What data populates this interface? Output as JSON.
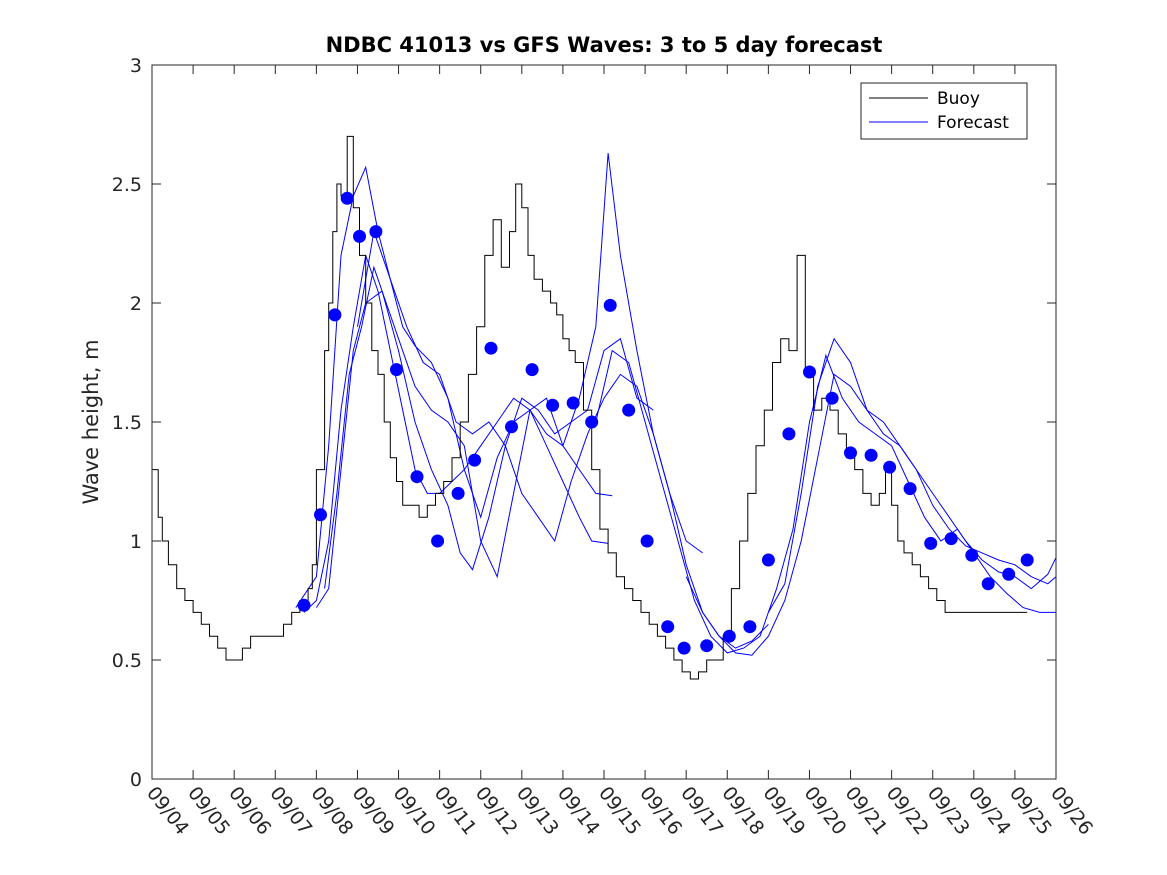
{
  "chart_data": {
    "type": "line",
    "title": "NDBC 41013 vs GFS Waves: 3 to 5 day forecast",
    "xlabel": "",
    "ylabel": "Wave height, m",
    "ylim": [
      0,
      3
    ],
    "xlim": [
      0,
      22
    ],
    "yticks": [
      0,
      0.5,
      1,
      1.5,
      2,
      2.5,
      3
    ],
    "yticklabels": [
      "0",
      "0.5",
      "1",
      "1.5",
      "2",
      "2.5",
      "3"
    ],
    "xticks": [
      0,
      1,
      2,
      3,
      4,
      5,
      6,
      7,
      8,
      9,
      10,
      11,
      12,
      13,
      14,
      15,
      16,
      17,
      18,
      19,
      20,
      21,
      22
    ],
    "xticklabels": [
      "09/04",
      "09/05",
      "09/06",
      "09/07",
      "09/08",
      "09/09",
      "09/10",
      "09/11",
      "09/12",
      "09/13",
      "09/14",
      "09/15",
      "09/16",
      "09/17",
      "09/18",
      "09/19",
      "09/20",
      "09/21",
      "09/22",
      "09/23",
      "09/24",
      "09/25",
      "09/26"
    ],
    "legend": {
      "position": "top-right",
      "entries": [
        "Buoy",
        "Forecast"
      ]
    },
    "colors": {
      "buoy": "#000000",
      "forecast": "#0000ff",
      "axes": "#262626"
    },
    "buoy": {
      "name": "Buoy",
      "x": [
        0,
        0.15,
        0.25,
        0.4,
        0.6,
        0.8,
        1.0,
        1.2,
        1.4,
        1.6,
        1.8,
        2.0,
        2.2,
        2.4,
        2.6,
        2.8,
        3.0,
        3.2,
        3.4,
        3.6,
        3.8,
        3.9,
        4.0,
        4.2,
        4.3,
        4.4,
        4.5,
        4.6,
        4.75,
        4.9,
        5.05,
        5.2,
        5.35,
        5.5,
        5.65,
        5.8,
        5.95,
        6.1,
        6.3,
        6.5,
        6.7,
        6.9,
        7.1,
        7.3,
        7.5,
        7.7,
        7.9,
        8.1,
        8.3,
        8.5,
        8.7,
        8.85,
        9.0,
        9.15,
        9.3,
        9.5,
        9.7,
        9.85,
        10.0,
        10.15,
        10.3,
        10.5,
        10.7,
        10.9,
        11.1,
        11.3,
        11.5,
        11.7,
        11.9,
        12.1,
        12.3,
        12.5,
        12.7,
        12.9,
        13.1,
        13.3,
        13.5,
        13.7,
        13.9,
        14.1,
        14.3,
        14.5,
        14.7,
        14.9,
        15.1,
        15.3,
        15.5,
        15.7,
        15.9,
        16.1,
        16.3,
        16.5,
        16.7,
        16.9,
        17.1,
        17.3,
        17.5,
        17.7,
        17.85,
        18.0,
        18.15,
        18.3,
        18.5,
        18.7,
        18.9,
        19.1,
        19.3,
        19.5,
        19.7,
        19.9,
        20.1,
        20.3,
        20.5,
        20.7,
        20.9,
        21.1,
        21.3
      ],
      "values": [
        1.3,
        1.1,
        1.0,
        0.9,
        0.8,
        0.75,
        0.7,
        0.65,
        0.6,
        0.55,
        0.5,
        0.5,
        0.55,
        0.6,
        0.6,
        0.6,
        0.6,
        0.65,
        0.7,
        0.75,
        0.8,
        0.9,
        1.3,
        1.8,
        2.0,
        2.3,
        2.5,
        2.45,
        2.7,
        2.4,
        2.2,
        2.0,
        1.8,
        1.7,
        1.5,
        1.35,
        1.25,
        1.15,
        1.15,
        1.1,
        1.15,
        1.2,
        1.25,
        1.35,
        1.5,
        1.7,
        1.9,
        2.2,
        2.35,
        2.15,
        2.3,
        2.5,
        2.4,
        2.2,
        2.1,
        2.05,
        2.0,
        1.95,
        1.85,
        1.8,
        1.75,
        1.55,
        1.3,
        1.05,
        0.95,
        0.85,
        0.8,
        0.75,
        0.7,
        0.65,
        0.6,
        0.55,
        0.5,
        0.45,
        0.42,
        0.45,
        0.5,
        0.5,
        0.6,
        0.8,
        1.0,
        1.2,
        1.4,
        1.55,
        1.75,
        1.85,
        1.8,
        2.2,
        1.7,
        1.55,
        1.6,
        1.55,
        1.45,
        1.35,
        1.3,
        1.2,
        1.15,
        1.2,
        1.3,
        1.15,
        1.0,
        0.95,
        0.9,
        0.85,
        0.8,
        0.75,
        0.7,
        0.7,
        0.7,
        0.7,
        0.7,
        0.7,
        0.7,
        0.7,
        0.7,
        0.7,
        0.7
      ]
    },
    "forecast_points": {
      "name": "Forecast",
      "x": [
        3.7,
        4.1,
        4.45,
        4.75,
        5.05,
        5.45,
        5.95,
        6.45,
        6.95,
        7.45,
        7.85,
        8.25,
        8.75,
        9.25,
        9.75,
        10.25,
        10.7,
        11.15,
        11.6,
        12.05,
        12.55,
        12.95,
        13.5,
        14.05,
        14.55,
        15.0,
        15.5,
        16.0,
        16.55,
        17.0,
        17.5,
        17.95,
        18.45,
        18.95,
        19.45,
        19.95,
        20.35,
        20.85,
        21.3
      ],
      "values": [
        0.73,
        1.11,
        1.95,
        2.44,
        2.28,
        2.3,
        1.72,
        1.27,
        1.0,
        1.2,
        1.34,
        1.81,
        1.48,
        1.72,
        1.57,
        1.58,
        1.5,
        1.99,
        1.55,
        1.0,
        0.64,
        0.55,
        0.56,
        0.6,
        0.64,
        0.92,
        1.45,
        1.71,
        1.6,
        1.37,
        1.36,
        1.31,
        1.22,
        0.99,
        1.01,
        0.94,
        0.82,
        0.86,
        0.92
      ]
    },
    "forecast_series": [
      {
        "x": [
          3.5,
          4.0,
          4.3,
          4.6,
          4.9,
          5.2,
          5.5,
          5.8,
          6.1,
          6.4,
          6.8,
          7.2,
          7.6,
          8.0,
          8.4,
          8.8,
          9.2,
          9.6,
          10.0,
          10.4,
          10.8,
          11.2
        ],
        "values": [
          0.72,
          0.85,
          1.4,
          2.2,
          2.45,
          2.57,
          2.3,
          2.1,
          1.9,
          1.82,
          1.75,
          1.6,
          1.3,
          1.1,
          1.35,
          1.5,
          1.55,
          1.6,
          1.4,
          1.3,
          1.2,
          1.19
        ]
      },
      {
        "x": [
          3.7,
          4.0,
          4.3,
          4.6,
          4.9,
          5.2,
          5.5,
          5.8,
          6.1,
          6.4,
          6.7,
          7.0,
          7.3,
          7.6,
          8.0,
          8.4,
          8.8,
          9.2,
          9.6,
          10.0,
          10.4,
          10.7,
          11.1
        ],
        "values": [
          0.7,
          0.75,
          1.0,
          1.55,
          1.9,
          2.2,
          2.05,
          1.8,
          1.55,
          1.3,
          1.2,
          1.2,
          1.25,
          1.3,
          1.4,
          1.5,
          1.6,
          1.55,
          1.4,
          1.25,
          1.1,
          1.0,
          0.99
        ]
      },
      {
        "x": [
          4.0,
          4.3,
          4.6,
          4.9,
          5.2,
          5.6,
          6.0,
          6.4,
          6.8,
          7.2,
          7.5,
          7.8,
          8.2,
          8.6,
          9.0,
          9.4,
          9.8,
          10.2,
          10.6,
          11.0,
          11.4,
          11.8,
          12.2
        ],
        "values": [
          0.72,
          0.8,
          1.3,
          1.8,
          2.0,
          2.05,
          1.8,
          1.5,
          1.3,
          1.15,
          0.95,
          0.88,
          1.1,
          1.4,
          1.6,
          1.55,
          1.45,
          1.5,
          1.55,
          1.8,
          1.85,
          1.6,
          1.55
        ]
      },
      {
        "x": [
          4.2,
          4.5,
          4.8,
          5.1,
          5.4,
          5.7,
          6.0,
          6.4,
          6.8,
          7.2,
          7.6,
          8.0,
          8.4,
          8.8,
          9.2,
          9.6,
          10.0,
          10.4,
          10.8,
          11.1,
          11.4,
          11.8,
          12.2,
          12.6,
          13.0,
          13.4
        ],
        "values": [
          0.8,
          1.2,
          1.7,
          1.9,
          2.15,
          2.0,
          1.85,
          1.65,
          1.55,
          1.5,
          1.4,
          1.0,
          0.85,
          1.2,
          1.55,
          1.45,
          1.4,
          1.6,
          1.9,
          2.63,
          2.2,
          1.8,
          1.45,
          1.2,
          1.0,
          0.95
        ]
      },
      {
        "x": [
          5.0,
          5.4,
          5.8,
          6.2,
          6.6,
          7.0,
          7.4,
          7.8,
          8.2,
          8.6,
          9.0,
          9.4,
          9.8,
          10.2,
          10.6,
          11.0,
          11.4,
          11.8,
          12.2,
          12.6,
          13.0,
          13.4,
          13.8,
          14.2,
          14.6,
          15.0
        ],
        "values": [
          1.9,
          2.3,
          2.1,
          1.9,
          1.75,
          1.7,
          1.5,
          1.45,
          1.5,
          1.4,
          1.2,
          1.1,
          1.0,
          1.25,
          1.45,
          1.6,
          1.7,
          1.65,
          1.45,
          1.2,
          0.9,
          0.7,
          0.6,
          0.55,
          0.58,
          0.65
        ]
      },
      {
        "x": [
          10.8,
          11.2,
          11.6,
          12.0,
          12.4,
          12.8,
          13.2,
          13.6,
          14.0,
          14.4,
          14.8,
          15.2,
          15.6,
          16.0,
          16.4,
          16.8,
          17.2,
          17.6,
          18.0,
          18.4,
          18.8,
          19.2,
          19.6,
          20.0,
          20.4,
          20.8,
          21.2,
          21.6,
          22.0
        ],
        "values": [
          1.5,
          1.8,
          1.75,
          1.5,
          1.25,
          1.0,
          0.75,
          0.6,
          0.53,
          0.55,
          0.6,
          0.8,
          1.05,
          1.5,
          1.78,
          1.6,
          1.5,
          1.45,
          1.4,
          1.25,
          1.1,
          1.0,
          1.05,
          0.95,
          0.85,
          0.78,
          0.72,
          0.7,
          0.7
        ]
      },
      {
        "x": [
          13.0,
          13.4,
          13.8,
          14.2,
          14.6,
          15.0,
          15.4,
          15.8,
          16.2,
          16.6,
          17.0,
          17.4,
          17.8,
          18.2,
          18.6,
          19.0,
          19.4,
          19.8,
          20.2,
          20.6,
          21.0,
          21.4,
          21.8,
          22.0
        ],
        "values": [
          0.85,
          0.7,
          0.6,
          0.53,
          0.52,
          0.6,
          0.75,
          1.0,
          1.35,
          1.7,
          1.65,
          1.55,
          1.5,
          1.4,
          1.3,
          1.15,
          1.05,
          0.98,
          0.95,
          0.92,
          0.9,
          0.85,
          0.82,
          0.85
        ]
      },
      {
        "x": [
          15.0,
          15.4,
          15.8,
          16.2,
          16.6,
          17.0,
          17.4,
          17.8,
          18.2,
          18.6,
          19.0,
          19.4,
          19.8,
          20.2,
          20.6,
          21.0,
          21.4,
          21.8,
          22.0
        ],
        "values": [
          0.7,
          0.82,
          1.2,
          1.65,
          1.85,
          1.75,
          1.55,
          1.45,
          1.4,
          1.3,
          1.2,
          1.1,
          1.0,
          0.92,
          0.87,
          0.85,
          0.8,
          0.86,
          0.93
        ]
      }
    ]
  }
}
